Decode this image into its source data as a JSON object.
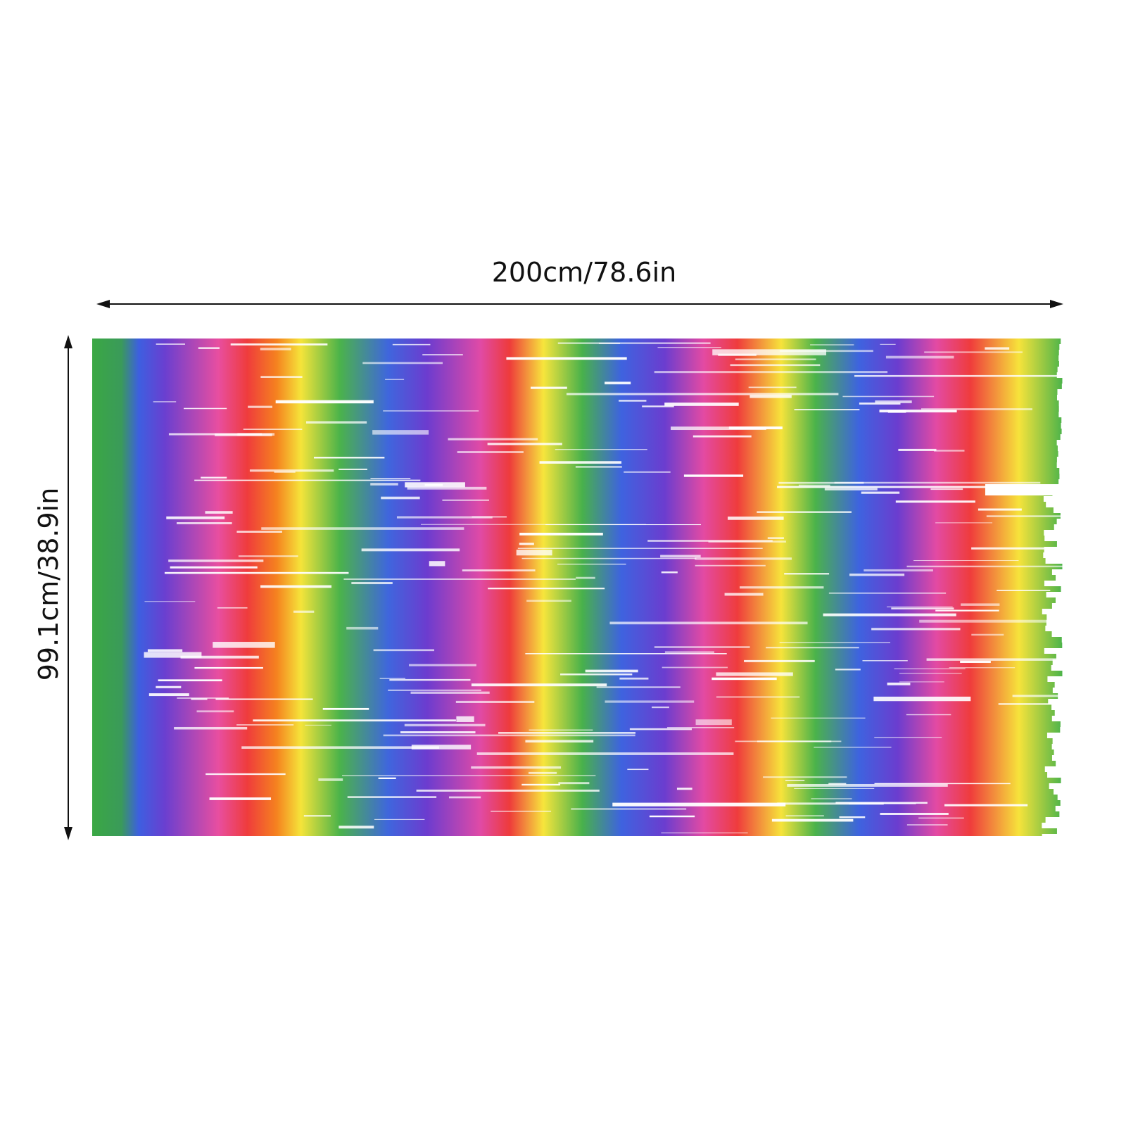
{
  "dimensions": {
    "width": "200cm/78.6in",
    "height": "99.1cm/38.9in"
  }
}
